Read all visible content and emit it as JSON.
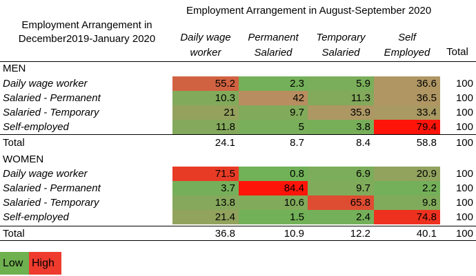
{
  "header": {
    "span_title": "Employment Arrangement in August-September 2020",
    "row_header_line1": "Employment Arrangement in",
    "row_header_line2": "December2019-January 2020",
    "columns": [
      {
        "line1": "Daily wage",
        "line2": "worker"
      },
      {
        "line1": "Permanent",
        "line2": "Salaried"
      },
      {
        "line1": "Temporary",
        "line2": "Salaried"
      },
      {
        "line1": "Self",
        "line2": "Employed"
      }
    ],
    "total_label": "Total"
  },
  "men": {
    "group_label": "MEN",
    "rows": [
      {
        "label": "Daily wage worker",
        "values": [
          "55.2",
          "2.3",
          "5.9",
          "36.6"
        ],
        "total": "100"
      },
      {
        "label": "Salaried - Permanent",
        "values": [
          "10.3",
          "42",
          "11.3",
          "36.5"
        ],
        "total": "100"
      },
      {
        "label": "Salaried - Temporary",
        "values": [
          "21",
          "9.7",
          "35.9",
          "33.4"
        ],
        "total": "100"
      },
      {
        "label": "Self-employed",
        "values": [
          "11.8",
          "5",
          "3.8",
          "79.4"
        ],
        "total": "100"
      }
    ],
    "total_row": {
      "label": "Total",
      "values": [
        "24.1",
        "8.7",
        "8.4",
        "58.8"
      ],
      "total": "100"
    }
  },
  "women": {
    "group_label": "WOMEN",
    "rows": [
      {
        "label": "Daily wage worker",
        "values": [
          "71.5",
          "0.8",
          "6.9",
          "20.9"
        ],
        "total": "100"
      },
      {
        "label": "Salaried - Permanent",
        "values": [
          "3.7",
          "84.4",
          "9.7",
          "2.2"
        ],
        "total": "100"
      },
      {
        "label": "Salaried - Temporary",
        "values": [
          "13.8",
          "10.6",
          "65.8",
          "9.8"
        ],
        "total": "100"
      },
      {
        "label": "Self-employed",
        "values": [
          "21.4",
          "1.5",
          "2.4",
          "74.8"
        ],
        "total": "100"
      }
    ],
    "total_row": {
      "label": "Total",
      "values": [
        "36.8",
        "10.9",
        "12.2",
        "40.1"
      ],
      "total": "100"
    }
  },
  "legend": {
    "low_label": "Low",
    "high_label": "High",
    "low_color": "#6fb04f",
    "high_color": "#ee3b2e"
  }
}
